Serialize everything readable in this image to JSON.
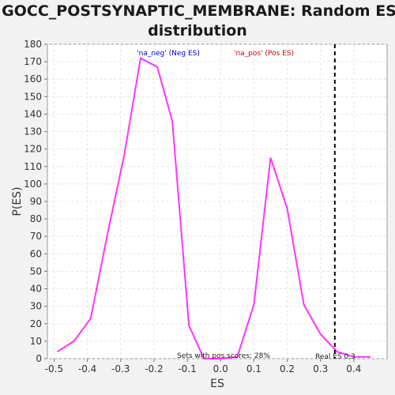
{
  "chart_data": {
    "type": "line",
    "title_line1": "GOCC_POSTSYNAPTIC_MEMBRANE: Random ES",
    "title_line2": "distribution",
    "xlabel": "ES",
    "ylabel": "P(ES)",
    "xlim": [
      -0.52,
      0.5
    ],
    "ylim": [
      0,
      180
    ],
    "x_ticks": [
      -0.5,
      -0.4,
      -0.3,
      -0.2,
      -0.1,
      0.0,
      0.1,
      0.2,
      0.3,
      0.4
    ],
    "x_tick_labels": [
      "-0.5",
      "-0.4",
      "-0.3",
      "-0.2",
      "-0.1",
      "0.0",
      "0.1",
      "0.2",
      "0.3",
      "0.4"
    ],
    "y_ticks": [
      0,
      10,
      20,
      30,
      40,
      50,
      60,
      70,
      80,
      90,
      100,
      110,
      120,
      130,
      140,
      150,
      160,
      170,
      180
    ],
    "y_tick_labels": [
      "0",
      "10",
      "20",
      "30",
      "40",
      "50",
      "60",
      "70",
      "80",
      "90",
      "100",
      "110",
      "120",
      "130",
      "140",
      "150",
      "160",
      "170",
      "180"
    ],
    "grid": true,
    "series": [
      {
        "name": "Random ES distribution",
        "color": "#ff33ff",
        "x": [
          -0.49,
          -0.44,
          -0.39,
          -0.34,
          -0.29,
          -0.24,
          -0.19,
          -0.145,
          -0.095,
          -0.05,
          0.0,
          0.05,
          0.1,
          0.15,
          0.2,
          0.25,
          0.3,
          0.35,
          0.4,
          0.45
        ],
        "y": [
          4,
          10,
          23,
          71,
          116,
          172,
          167,
          136,
          19,
          0,
          0,
          1,
          31,
          115,
          86,
          31,
          14,
          4,
          1,
          1
        ]
      }
    ],
    "real_es_line": {
      "x": 0.343,
      "color": "#000000"
    },
    "annotations": {
      "neg_label": "'na_neg' (Neg ES)",
      "neg_color": "#0000cc",
      "pos_label": "'na_pos' (Pos ES)",
      "pos_color": "#cc0000",
      "pos_scores": "Sets with pos scores: 28%",
      "real_es": "Real ES 0.3"
    }
  }
}
